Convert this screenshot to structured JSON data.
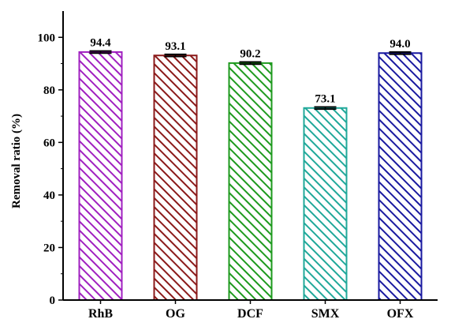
{
  "chart_data": {
    "type": "bar",
    "categories": [
      "RhB",
      "OG",
      "DCF",
      "SMX",
      "OFX"
    ],
    "values": [
      94.4,
      93.1,
      90.2,
      73.1,
      94.0
    ],
    "data_labels": [
      "94.4",
      "93.1",
      "90.2",
      "73.1",
      "94.0"
    ],
    "error": [
      0.4,
      0.4,
      0.4,
      0.4,
      0.4
    ],
    "colors": [
      "#a020c0",
      "#8b1a1a",
      "#1e9a1e",
      "#20a89a",
      "#1a1aa0"
    ],
    "pattern": "diagonal-hatch",
    "title": "",
    "xlabel": "",
    "ylabel": "Removal ratio (%)",
    "ylim": [
      0,
      110
    ],
    "yticks": [
      0,
      20,
      40,
      60,
      80,
      100
    ],
    "grid": false,
    "legend": "none"
  }
}
